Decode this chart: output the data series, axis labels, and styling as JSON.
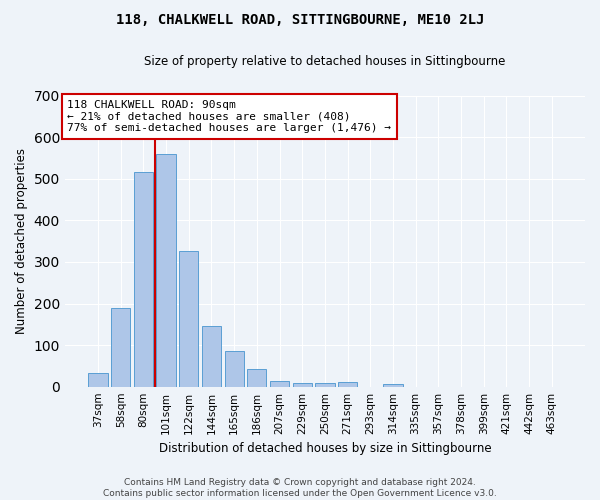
{
  "title": "118, CHALKWELL ROAD, SITTINGBOURNE, ME10 2LJ",
  "subtitle": "Size of property relative to detached houses in Sittingbourne",
  "xlabel": "Distribution of detached houses by size in Sittingbourne",
  "ylabel": "Number of detached properties",
  "footer_line1": "Contains HM Land Registry data © Crown copyright and database right 2024.",
  "footer_line2": "Contains public sector information licensed under the Open Government Licence v3.0.",
  "bin_labels": [
    "37sqm",
    "58sqm",
    "80sqm",
    "101sqm",
    "122sqm",
    "144sqm",
    "165sqm",
    "186sqm",
    "207sqm",
    "229sqm",
    "250sqm",
    "271sqm",
    "293sqm",
    "314sqm",
    "335sqm",
    "357sqm",
    "378sqm",
    "399sqm",
    "421sqm",
    "442sqm",
    "463sqm"
  ],
  "bar_values": [
    33,
    190,
    516,
    560,
    327,
    145,
    86,
    42,
    14,
    10,
    10,
    11,
    0,
    6,
    0,
    0,
    0,
    0,
    0,
    0,
    0
  ],
  "bar_color": "#aec6e8",
  "bar_edge_color": "#5a9fd4",
  "background_color": "#eef3f9",
  "grid_color": "#ffffff",
  "property_sqm": 90,
  "property_bin_index": 2,
  "vline_color": "#cc0000",
  "annotation_line1": "118 CHALKWELL ROAD: 90sqm",
  "annotation_line2": "← 21% of detached houses are smaller (408)",
  "annotation_line3": "77% of semi-detached houses are larger (1,476) →",
  "annotation_box_color": "#ffffff",
  "annotation_box_edge_color": "#cc0000",
  "ylim": [
    0,
    700
  ],
  "yticks": [
    0,
    100,
    200,
    300,
    400,
    500,
    600,
    700
  ],
  "title_fontsize": 10,
  "subtitle_fontsize": 8.5,
  "tick_fontsize": 7.5,
  "ylabel_fontsize": 8.5,
  "xlabel_fontsize": 8.5,
  "annotation_fontsize": 8,
  "footer_fontsize": 6.5
}
